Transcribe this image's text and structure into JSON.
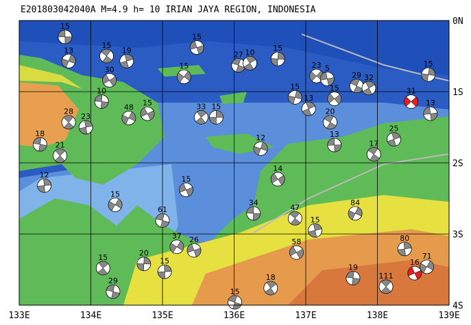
{
  "title": "E201803042040A M=4.9 h= 10 IRIAN JAYA REGION, INDONESIA",
  "map": {
    "lon_ticks": [
      {
        "value": 133,
        "label": "133E"
      },
      {
        "value": 134,
        "label": "134E"
      },
      {
        "value": 135,
        "label": "135E"
      },
      {
        "value": 136,
        "label": "136E"
      },
      {
        "value": 137,
        "label": "137E"
      },
      {
        "value": 138,
        "label": "138E"
      },
      {
        "value": 139,
        "label": "139E"
      }
    ],
    "lat_ticks": [
      {
        "value": 0,
        "label": "0N"
      },
      {
        "value": -1,
        "label": "1S"
      },
      {
        "value": -2,
        "label": "2S"
      },
      {
        "value": -3,
        "label": "3S"
      },
      {
        "value": -4,
        "label": "4S"
      }
    ],
    "lonlim": [
      133,
      139
    ],
    "latlim": [
      0,
      -4
    ],
    "events": [
      {
        "lon": 133.64,
        "lat": -0.23,
        "depth": 15,
        "color": "#888888"
      },
      {
        "lon": 134.22,
        "lat": -0.5,
        "depth": 15,
        "color": "#888888"
      },
      {
        "lon": 134.5,
        "lat": -0.57,
        "depth": 19,
        "color": "#888888"
      },
      {
        "lon": 133.69,
        "lat": -0.57,
        "depth": 13,
        "color": "#888888"
      },
      {
        "lon": 134.26,
        "lat": -0.84,
        "depth": 30,
        "color": "#888888"
      },
      {
        "lon": 134.15,
        "lat": -1.14,
        "depth": 10,
        "color": "#888888"
      },
      {
        "lon": 133.69,
        "lat": -1.43,
        "depth": 28,
        "color": "#888888"
      },
      {
        "lon": 133.93,
        "lat": -1.5,
        "depth": 23,
        "color": "#888888"
      },
      {
        "lon": 134.53,
        "lat": -1.37,
        "depth": 48,
        "color": "#888888"
      },
      {
        "lon": 134.79,
        "lat": -1.31,
        "depth": 15,
        "color": "#888888"
      },
      {
        "lon": 133.29,
        "lat": -1.74,
        "depth": 18,
        "color": "#888888"
      },
      {
        "lon": 133.57,
        "lat": -1.9,
        "depth": 21,
        "color": "#888888"
      },
      {
        "lon": 133.35,
        "lat": -2.32,
        "depth": 12,
        "color": "#888888"
      },
      {
        "lon": 134.34,
        "lat": -2.59,
        "depth": 15,
        "color": "#888888"
      },
      {
        "lon": 135.33,
        "lat": -2.38,
        "depth": 15,
        "color": "#888888"
      },
      {
        "lon": 135.0,
        "lat": -2.81,
        "depth": 61,
        "color": "#888888"
      },
      {
        "lon": 135.54,
        "lat": -1.36,
        "depth": 33,
        "color": "#888888"
      },
      {
        "lon": 135.75,
        "lat": -1.36,
        "depth": 15,
        "color": "#888888"
      },
      {
        "lon": 135.3,
        "lat": -0.79,
        "depth": 15,
        "color": "#888888"
      },
      {
        "lon": 135.48,
        "lat": -0.38,
        "depth": 15,
        "color": "#888888"
      },
      {
        "lon": 136.06,
        "lat": -0.63,
        "depth": 27,
        "color": "#888888"
      },
      {
        "lon": 136.22,
        "lat": -0.6,
        "depth": 10,
        "color": "#888888"
      },
      {
        "lon": 136.61,
        "lat": -0.54,
        "depth": 15,
        "color": "#888888"
      },
      {
        "lon": 137.15,
        "lat": -0.78,
        "depth": 23,
        "color": "#888888"
      },
      {
        "lon": 137.3,
        "lat": -0.82,
        "depth": 5,
        "color": "#888888"
      },
      {
        "lon": 137.71,
        "lat": -0.92,
        "depth": 29,
        "color": "#888888"
      },
      {
        "lon": 137.88,
        "lat": -0.95,
        "depth": 32,
        "color": "#888888"
      },
      {
        "lon": 138.71,
        "lat": -0.76,
        "depth": 15,
        "color": "#888888"
      },
      {
        "lon": 138.47,
        "lat": -1.14,
        "depth": 31,
        "color": "#e02020"
      },
      {
        "lon": 138.74,
        "lat": -1.31,
        "depth": 13,
        "color": "#888888"
      },
      {
        "lon": 137.34,
        "lat": -1.43,
        "depth": 20,
        "color": "#888888"
      },
      {
        "lon": 137.04,
        "lat": -1.24,
        "depth": 13,
        "color": "#888888"
      },
      {
        "lon": 136.85,
        "lat": -1.08,
        "depth": 15,
        "color": "#888888"
      },
      {
        "lon": 137.4,
        "lat": -1.1,
        "depth": 15,
        "color": "#888888"
      },
      {
        "lon": 137.4,
        "lat": -1.75,
        "depth": 13,
        "color": "#888888"
      },
      {
        "lon": 137.95,
        "lat": -1.88,
        "depth": 17,
        "color": "#888888"
      },
      {
        "lon": 138.23,
        "lat": -1.67,
        "depth": 25,
        "color": "#888888"
      },
      {
        "lon": 136.37,
        "lat": -1.8,
        "depth": 12,
        "color": "#888888"
      },
      {
        "lon": 136.61,
        "lat": -2.23,
        "depth": 14,
        "color": "#888888"
      },
      {
        "lon": 136.27,
        "lat": -2.71,
        "depth": 34,
        "color": "#888888"
      },
      {
        "lon": 136.85,
        "lat": -2.78,
        "depth": 47,
        "color": "#888888"
      },
      {
        "lon": 137.13,
        "lat": -2.95,
        "depth": 15,
        "color": "#888888"
      },
      {
        "lon": 137.69,
        "lat": -2.71,
        "depth": 84,
        "color": "#888888"
      },
      {
        "lon": 136.87,
        "lat": -3.26,
        "depth": 58,
        "color": "#888888"
      },
      {
        "lon": 137.66,
        "lat": -3.62,
        "depth": 19,
        "color": "#888888"
      },
      {
        "lon": 138.12,
        "lat": -3.74,
        "depth": 111,
        "color": "#888888"
      },
      {
        "lon": 138.38,
        "lat": -3.21,
        "depth": 80,
        "color": "#888888"
      },
      {
        "lon": 138.69,
        "lat": -3.46,
        "depth": 71,
        "color": "#888888"
      },
      {
        "lon": 138.52,
        "lat": -3.55,
        "depth": 16,
        "color": "#e02020"
      },
      {
        "lon": 134.31,
        "lat": -3.81,
        "depth": 29,
        "color": "#888888"
      },
      {
        "lon": 134.17,
        "lat": -3.48,
        "depth": 15,
        "color": "#888888"
      },
      {
        "lon": 135.03,
        "lat": -3.53,
        "depth": 15,
        "color": "#888888"
      },
      {
        "lon": 135.2,
        "lat": -3.18,
        "depth": 37,
        "color": "#888888"
      },
      {
        "lon": 135.44,
        "lat": -3.23,
        "depth": 26,
        "color": "#888888"
      },
      {
        "lon": 136.01,
        "lat": -3.96,
        "depth": 15,
        "color": "#888888"
      },
      {
        "lon": 136.51,
        "lat": -3.76,
        "depth": 18,
        "color": "#888888"
      },
      {
        "lon": 134.74,
        "lat": -3.42,
        "depth": 20,
        "color": "#888888"
      }
    ]
  }
}
